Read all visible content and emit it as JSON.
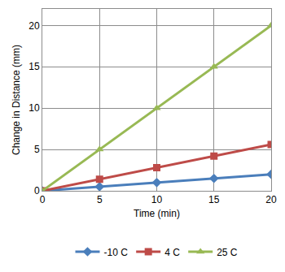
{
  "chart_data": {
    "type": "line",
    "x_label": "Time (min)",
    "y_label": "Change in Distance (mm)",
    "x": [
      0,
      5,
      10,
      15,
      20
    ],
    "series": [
      {
        "name": "-10 C",
        "color": "#4a7ebb",
        "marker": "diamond",
        "values": [
          0,
          0.5,
          1,
          1.5,
          2
        ]
      },
      {
        "name": "4 C",
        "color": "#be4b48",
        "marker": "square",
        "values": [
          0,
          1.4,
          2.8,
          4.2,
          5.6
        ]
      },
      {
        "name": "25 C",
        "color": "#98b954",
        "marker": "triangle-up",
        "values": [
          0,
          5,
          10,
          15,
          20
        ]
      }
    ],
    "xlim": [
      0,
      20
    ],
    "xticks": [
      0,
      5,
      10,
      15,
      20
    ],
    "ylim": [
      0,
      22
    ],
    "yticks": [
      0,
      5,
      10,
      15,
      20
    ],
    "grid": true,
    "legend": "bottom"
  }
}
